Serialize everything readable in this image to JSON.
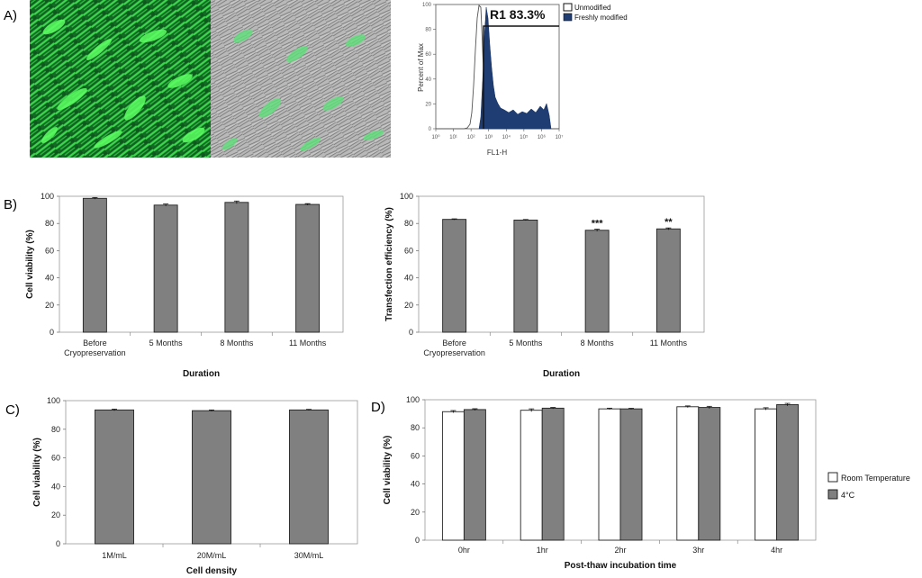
{
  "panels": {
    "A": {
      "letter": "A)",
      "histogram": {
        "ylabel": "Percent of Max",
        "xlabel": "FL1-H",
        "gate_label": "R1 83.3%",
        "y_ticks": [
          "0",
          "20",
          "40",
          "60",
          "80",
          "100"
        ],
        "x_ticks": [
          "10⁰",
          "10¹",
          "10²",
          "10³",
          "10⁴",
          "10⁵",
          "10⁶",
          "10⁷"
        ],
        "legend": [
          {
            "label": "Unmodified",
            "color": "#ffffff"
          },
          {
            "label": "Freshly modified",
            "color": "#1f3d73"
          }
        ]
      }
    },
    "B": {
      "letter": "B)"
    },
    "C": {
      "letter": "C)"
    },
    "D": {
      "letter": "D)"
    }
  },
  "chart_data": [
    {
      "id": "B-left",
      "type": "bar",
      "categories": [
        "Before\nCryopreservation",
        "5 Months",
        "8 Months",
        "11 Months"
      ],
      "values": [
        98.5,
        93.5,
        95.5,
        94
      ],
      "errors": [
        0.6,
        0.8,
        1.0,
        0.6
      ],
      "ylabel": "Cell viability (%)",
      "xlabel": "Duration",
      "ylim": [
        0,
        100
      ],
      "yticks": [
        0,
        20,
        40,
        60,
        80,
        100
      ],
      "bar_color": "#808080",
      "annotations": [
        "",
        "",
        "",
        ""
      ]
    },
    {
      "id": "B-right",
      "type": "bar",
      "categories": [
        "Before\nCryopreservation",
        "5 Months",
        "8 Months",
        "11 Months"
      ],
      "values": [
        83,
        82.5,
        75,
        76
      ],
      "errors": [
        0.4,
        0.4,
        0.8,
        0.7
      ],
      "ylabel": "Transfection efficiency (%)",
      "xlabel": "Duration",
      "ylim": [
        0,
        100
      ],
      "yticks": [
        0,
        20,
        40,
        60,
        80,
        100
      ],
      "bar_color": "#808080",
      "annotations": [
        "",
        "",
        "***",
        "**"
      ]
    },
    {
      "id": "C",
      "type": "bar",
      "categories": [
        "1M/mL",
        "20M/mL",
        "30M/mL"
      ],
      "values": [
        93.5,
        93,
        93.5
      ],
      "errors": [
        0.6,
        0.5,
        0.4
      ],
      "ylabel": "Cell viability (%)",
      "xlabel": "Cell density",
      "ylim": [
        0,
        100
      ],
      "yticks": [
        0,
        20,
        40,
        60,
        80,
        100
      ],
      "bar_color": "#808080",
      "annotations": [
        "",
        "",
        ""
      ]
    },
    {
      "id": "D",
      "type": "bar",
      "categories": [
        "0hr",
        "1hr",
        "2hr",
        "3hr",
        "4hr"
      ],
      "series": [
        {
          "name": "Room Temperature",
          "values": [
            91.5,
            92.5,
            93.5,
            95,
            93.5
          ],
          "errors": [
            0.8,
            1.0,
            0.5,
            0.6,
            0.8
          ],
          "color": "#ffffff"
        },
        {
          "name": "4°C",
          "values": [
            93,
            94,
            93.5,
            94.5,
            96.5
          ],
          "errors": [
            0.6,
            0.5,
            0.4,
            0.8,
            0.9
          ],
          "color": "#808080"
        }
      ],
      "ylabel": "Cell viability (%)",
      "xlabel": "Post-thaw incubation time",
      "ylim": [
        0,
        100
      ],
      "yticks": [
        0,
        20,
        40,
        60,
        80,
        100
      ],
      "legend": "right"
    }
  ]
}
